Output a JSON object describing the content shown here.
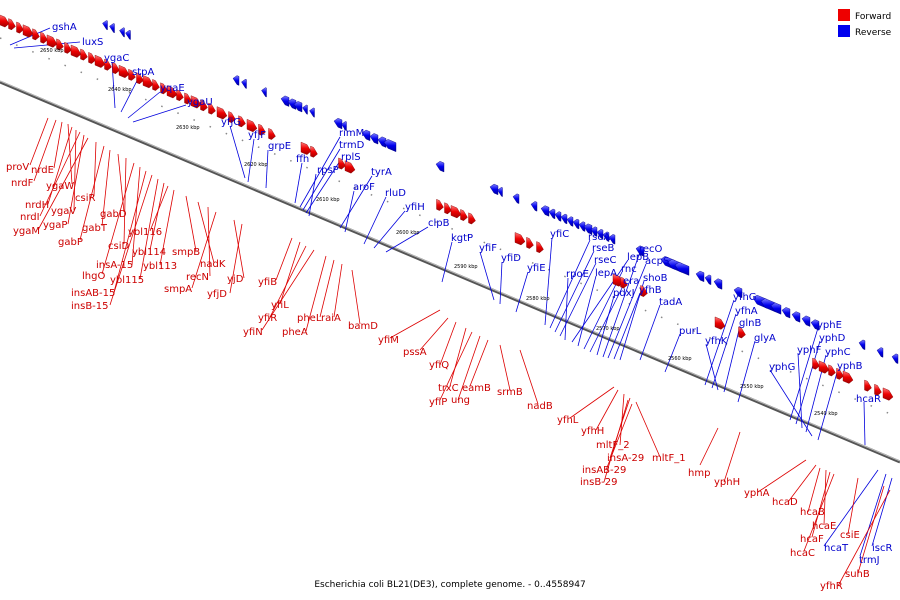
{
  "caption": "Escherichia coli BL21(DE3), complete genome. - 0..4558947",
  "legend": {
    "forward_label": "Forward",
    "reverse_label": "Reverse",
    "forward_color": "#ee0000",
    "reverse_color": "#0000ee"
  },
  "colors": {
    "axis": "#888888",
    "forward_leader": "#dd0000",
    "reverse_leader": "#0000dd"
  },
  "scale_labels": [
    "2650 kbp",
    "2640 kbp",
    "2630 kbp",
    "2620 kbp",
    "2610 kbp",
    "2600 kbp",
    "2590 kbp",
    "2580 kbp",
    "2570 kbp",
    "2560 kbp",
    "2550 kbp",
    "2540 kbp"
  ],
  "reverse_genes": [
    "gshA",
    "luxS",
    "ygaC",
    "stpA",
    "yqaE",
    "ygaU",
    "yfjG",
    "yfjF",
    "grpE",
    "ffh",
    "rimM",
    "trmD",
    "rplS",
    "rpsP",
    "tyrA",
    "aroF",
    "rluD",
    "yfiH",
    "clpB",
    "kgtP",
    "yfiF",
    "yfiD",
    "yfiE",
    "yfiC",
    "rseA",
    "rseB",
    "rseC",
    "rpoE",
    "lepB",
    "lepA",
    "rnc",
    "era",
    "pdxJ",
    "recO",
    "acpS",
    "yfhB",
    "shoB",
    "tadA",
    "purL",
    "yfhG",
    "yfhA",
    "yfhK",
    "glnB",
    "glyA",
    "yphE",
    "yphD",
    "yphF",
    "yphC",
    "yphG",
    "yphB",
    "hcaR",
    "hcaT",
    "trmJ",
    "iscR"
  ],
  "forward_genes": [
    "proV",
    "nrdF",
    "nrdE",
    "ygaW",
    "nrdH",
    "ygaV",
    "nrdI",
    "ygaP",
    "ygaM",
    "csiR",
    "gabP",
    "gabT",
    "gabD",
    "csiD",
    "lhgO",
    "insA-15",
    "insAB-15",
    "insB-15",
    "ybl115",
    "ybl114",
    "ybl116",
    "ybl113",
    "smpB",
    "nadK",
    "recN",
    "smpA",
    "yjD",
    "yfjD",
    "yfiB",
    "yfiL",
    "yfiR",
    "yfiN",
    "pheA",
    "pheL",
    "raiA",
    "bamD",
    "yfiM",
    "pssA",
    "yfiQ",
    "trxC",
    "yfiP",
    "ung",
    "eamB",
    "srmB",
    "nadB",
    "yfhL",
    "yfhH",
    "mltF_2",
    "insA-29",
    "mltF_1",
    "insAB-29",
    "insB-29",
    "hmp",
    "yphH",
    "yphA",
    "hcaD",
    "hcaB",
    "hcaE",
    "hcaF",
    "hcaC",
    "csiE",
    "suhB",
    "yfhR"
  ]
}
